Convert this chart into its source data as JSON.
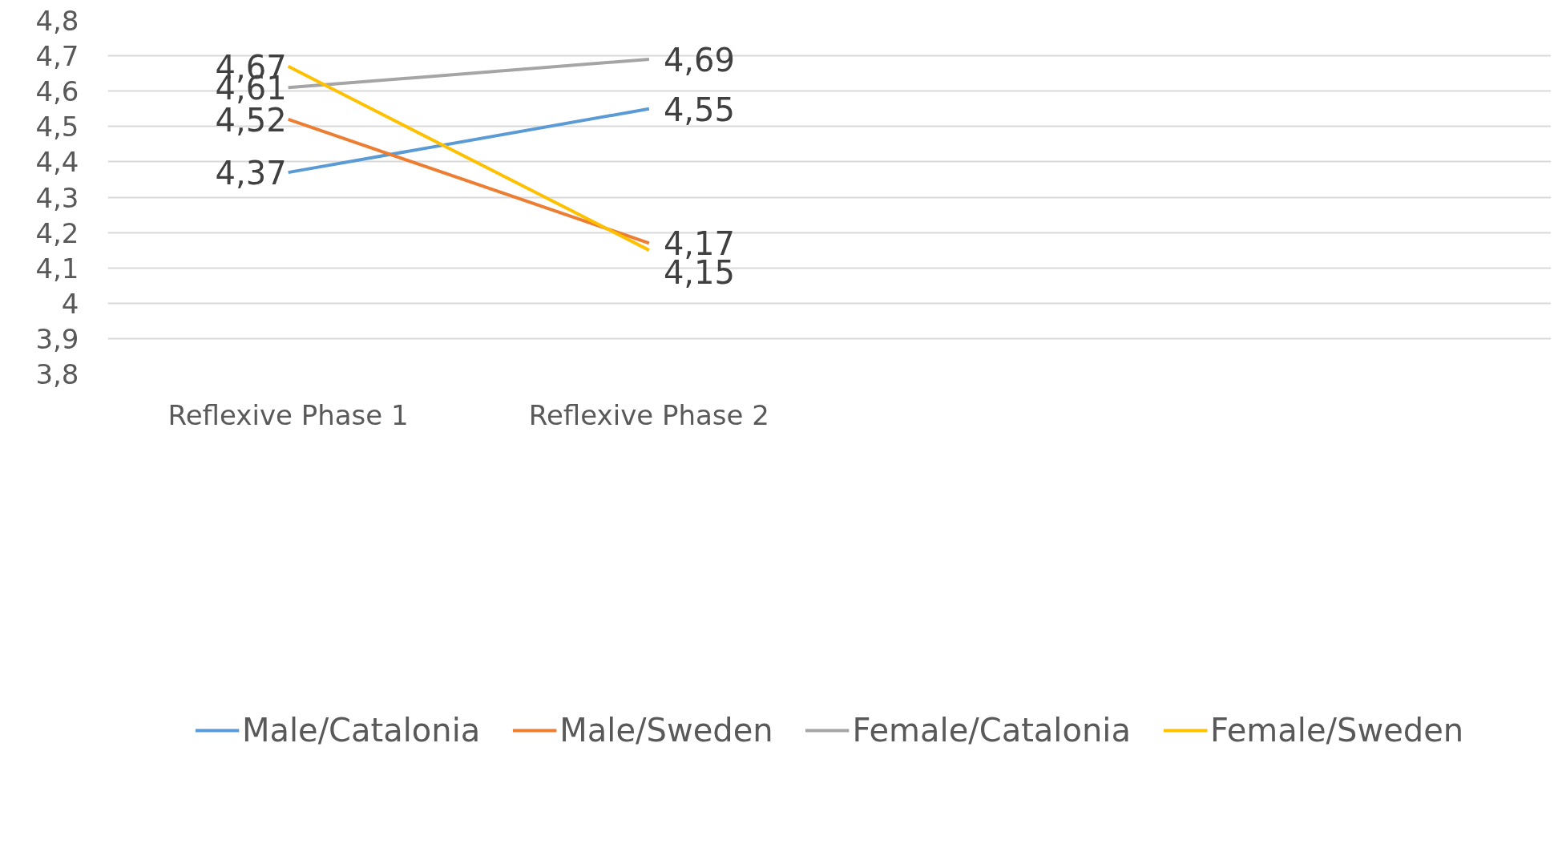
{
  "chart_data": {
    "type": "line",
    "categories": [
      "Reflexive Phase 1",
      "Reflexive Phase 2",
      null,
      null
    ],
    "series": [
      {
        "name": "Male/Catalonia",
        "color": "#5b9bd5",
        "values": [
          4.37,
          4.55,
          null,
          null
        ],
        "value_labels": [
          "4,37",
          "4,55",
          null,
          null
        ]
      },
      {
        "name": "Male/Sweden",
        "color": "#ed7d31",
        "values": [
          4.52,
          4.17,
          null,
          null
        ],
        "value_labels": [
          "4,52",
          "4,17",
          null,
          null
        ]
      },
      {
        "name": "Female/Catalonia",
        "color": "#a5a5a5",
        "values": [
          4.61,
          4.69,
          null,
          null
        ],
        "value_labels": [
          "4,61",
          "4,69",
          null,
          null
        ]
      },
      {
        "name": "Female/Sweden",
        "color": "#ffc000",
        "values": [
          4.67,
          4.15,
          null,
          null
        ],
        "value_labels": [
          "4,67",
          "4,15",
          null,
          null
        ]
      }
    ],
    "ylim": [
      3.8,
      4.8
    ],
    "yticks": [
      {
        "value": 3.8,
        "label": "3,8"
      },
      {
        "value": 3.9,
        "label": "3,9"
      },
      {
        "value": 4,
        "label": "4"
      },
      {
        "value": 4.1,
        "label": "4,1"
      },
      {
        "value": 4.2,
        "label": "4,2"
      },
      {
        "value": 4.3,
        "label": "4,3"
      },
      {
        "value": 4.4,
        "label": "4,4"
      },
      {
        "value": 4.5,
        "label": "4,5"
      },
      {
        "value": 4.6,
        "label": "4,6"
      },
      {
        "value": 4.7,
        "label": "4,7"
      },
      {
        "value": 4.8,
        "label": "4,8"
      }
    ],
    "grid": "y",
    "legend": "bottom",
    "marker": "none",
    "line_style": "solid"
  }
}
